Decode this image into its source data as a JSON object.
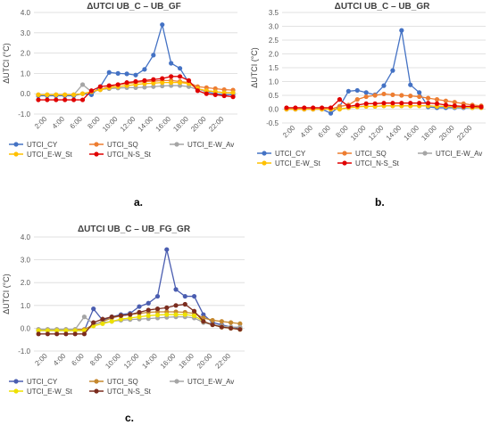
{
  "captions": [
    "a.",
    "b.",
    "c."
  ],
  "colors": {
    "UTCI_CY": "#4472C4",
    "UTCI_SQ": "#ED7D31",
    "UTCI_E-W_Av": "#A5A5A5",
    "UTCI_E-W_St": "#FFC000",
    "UTCI_N-S_St": "#E00000",
    "UTCI_SQ_c": "#C5882E",
    "UTCI_N-S_St_c": "#7B2C1E",
    "UTCI_CY_c": "#4A5DB0",
    "UTCI_E-W_St_c": "#EDE000"
  },
  "chart_data": [
    {
      "type": "line",
      "title": "ΔUTCI UB_C – UB_GF",
      "ylabel": "ΔUTCI (°C)",
      "xlabel": "",
      "ylim": [
        -1.0,
        4.0
      ],
      "yticks": [
        "-1.0",
        "0.0",
        "1.0",
        "2.0",
        "3.0",
        "4.0"
      ],
      "categories": [
        "1:00",
        "2:00",
        "3:00",
        "4:00",
        "5:00",
        "6:00",
        "7:00",
        "8:00",
        "9:00",
        "10:00",
        "11:00",
        "12:00",
        "13:00",
        "14:00",
        "15:00",
        "16:00",
        "17:00",
        "18:00",
        "19:00",
        "20:00",
        "21:00",
        "22:00",
        "23:00"
      ],
      "xtick_labels": [
        "2:00",
        "4:00",
        "6:00",
        "8:00",
        "10:00",
        "12:00",
        "14:00",
        "16:00",
        "18:00",
        "20:00",
        "22:00"
      ],
      "grid": true,
      "legend": "bottom",
      "series": [
        {
          "name": "UTCI_CY",
          "values": [
            -0.1,
            -0.1,
            -0.1,
            -0.1,
            -0.1,
            0.0,
            -0.05,
            0.35,
            1.05,
            1.0,
            0.98,
            0.92,
            1.2,
            1.9,
            3.4,
            1.5,
            1.25,
            0.55,
            0.25,
            0.1,
            0.0,
            -0.05,
            -0.05
          ]
        },
        {
          "name": "UTCI_SQ",
          "values": [
            -0.05,
            -0.05,
            -0.05,
            -0.05,
            -0.05,
            0.0,
            0.1,
            0.2,
            0.35,
            0.45,
            0.5,
            0.55,
            0.6,
            0.62,
            0.65,
            0.65,
            0.6,
            0.55,
            0.35,
            0.3,
            0.25,
            0.2,
            0.18
          ]
        },
        {
          "name": "UTCI_E-W_Av",
          "values": [
            -0.05,
            -0.05,
            -0.05,
            -0.05,
            -0.05,
            0.45,
            0.1,
            0.2,
            0.25,
            0.28,
            0.3,
            0.3,
            0.32,
            0.35,
            0.38,
            0.4,
            0.4,
            0.35,
            0.2,
            0.15,
            0.1,
            0.05,
            0.05
          ]
        },
        {
          "name": "UTCI_E-W_St",
          "values": [
            -0.05,
            -0.05,
            -0.05,
            -0.05,
            -0.05,
            0.0,
            0.1,
            0.2,
            0.3,
            0.35,
            0.4,
            0.45,
            0.5,
            0.52,
            0.55,
            0.55,
            0.55,
            0.5,
            0.25,
            0.15,
            0.1,
            0.05,
            0.05
          ]
        },
        {
          "name": "UTCI_N-S_St",
          "values": [
            -0.3,
            -0.3,
            -0.3,
            -0.3,
            -0.3,
            -0.3,
            0.15,
            0.35,
            0.4,
            0.45,
            0.55,
            0.6,
            0.65,
            0.7,
            0.75,
            0.85,
            0.85,
            0.65,
            0.15,
            0.0,
            -0.05,
            -0.1,
            -0.15
          ]
        }
      ]
    },
    {
      "type": "line",
      "title": "ΔUTCI UB_C – UB_GR",
      "ylabel": "ΔUTCI (°C)",
      "xlabel": "",
      "ylim": [
        -0.5,
        3.5
      ],
      "yticks": [
        "-0.5",
        "0.0",
        "0.5",
        "1.0",
        "1.5",
        "2.0",
        "2.5",
        "3.0",
        "3.5"
      ],
      "categories": [
        "1:00",
        "2:00",
        "3:00",
        "4:00",
        "5:00",
        "6:00",
        "7:00",
        "8:00",
        "9:00",
        "10:00",
        "11:00",
        "12:00",
        "13:00",
        "14:00",
        "15:00",
        "16:00",
        "17:00",
        "18:00",
        "19:00",
        "20:00",
        "21:00",
        "22:00",
        "23:00"
      ],
      "xtick_labels": [
        "2:00",
        "4:00",
        "6:00",
        "8:00",
        "10:00",
        "12:00",
        "14:00",
        "16:00",
        "18:00",
        "20:00",
        "22:00"
      ],
      "grid": true,
      "legend": "bottom",
      "series": [
        {
          "name": "UTCI_CY",
          "values": [
            0.0,
            0.0,
            0.0,
            0.0,
            0.0,
            -0.15,
            0.1,
            0.65,
            0.68,
            0.6,
            0.52,
            0.85,
            1.4,
            2.85,
            0.88,
            0.6,
            0.08,
            0.05,
            0.05,
            0.05,
            0.05,
            0.05,
            0.05
          ]
        },
        {
          "name": "UTCI_SQ",
          "values": [
            0.0,
            0.0,
            0.0,
            0.0,
            0.0,
            0.0,
            0.1,
            0.15,
            0.35,
            0.45,
            0.5,
            0.55,
            0.52,
            0.5,
            0.48,
            0.45,
            0.4,
            0.35,
            0.3,
            0.25,
            0.2,
            0.15,
            0.12
          ]
        },
        {
          "name": "UTCI_E-W_Av",
          "values": [
            0.0,
            0.0,
            0.0,
            0.0,
            0.0,
            0.0,
            0.0,
            0.05,
            0.1,
            0.1,
            0.1,
            0.12,
            0.12,
            0.12,
            0.12,
            0.12,
            0.12,
            0.1,
            0.1,
            0.08,
            0.08,
            0.05,
            0.05
          ]
        },
        {
          "name": "UTCI_E-W_St",
          "values": [
            0.0,
            0.0,
            0.0,
            0.0,
            0.0,
            0.0,
            0.0,
            0.05,
            0.08,
            0.1,
            0.1,
            0.12,
            0.12,
            0.12,
            0.12,
            0.12,
            0.12,
            0.1,
            0.1,
            0.08,
            0.08,
            0.05,
            0.05
          ]
        },
        {
          "name": "UTCI_N-S_St",
          "values": [
            0.05,
            0.05,
            0.05,
            0.05,
            0.05,
            0.05,
            0.35,
            0.1,
            0.15,
            0.2,
            0.2,
            0.22,
            0.22,
            0.22,
            0.22,
            0.22,
            0.22,
            0.2,
            0.15,
            0.12,
            0.1,
            0.1,
            0.08
          ]
        }
      ]
    },
    {
      "type": "line",
      "title": "ΔUTCI UB_C – UB_FG_GR",
      "ylabel": "ΔUTCI (°C)",
      "xlabel": "",
      "ylim": [
        -1.0,
        4.0
      ],
      "yticks": [
        "-1.0",
        "0.0",
        "1.0",
        "2.0",
        "3.0",
        "4.0"
      ],
      "categories": [
        "1:00",
        "2:00",
        "3:00",
        "4:00",
        "5:00",
        "6:00",
        "7:00",
        "8:00",
        "9:00",
        "10:00",
        "11:00",
        "12:00",
        "13:00",
        "14:00",
        "15:00",
        "16:00",
        "17:00",
        "18:00",
        "19:00",
        "20:00",
        "21:00",
        "22:00",
        "23:00"
      ],
      "xtick_labels": [
        "2:00",
        "4:00",
        "6:00",
        "8:00",
        "10:00",
        "12:00",
        "14:00",
        "16:00",
        "18:00",
        "20:00",
        "22:00"
      ],
      "grid": true,
      "legend": "bottom",
      "series": [
        {
          "name": "UTCI_CY",
          "values": [
            -0.1,
            -0.1,
            -0.1,
            -0.1,
            -0.1,
            -0.1,
            0.85,
            0.35,
            0.5,
            0.6,
            0.65,
            0.95,
            1.1,
            1.4,
            3.45,
            1.7,
            1.4,
            1.4,
            0.6,
            0.25,
            0.15,
            0.05,
            0.0
          ]
        },
        {
          "name": "UTCI_SQ",
          "values": [
            -0.05,
            -0.05,
            -0.05,
            -0.05,
            -0.05,
            -0.05,
            0.15,
            0.3,
            0.45,
            0.55,
            0.6,
            0.65,
            0.7,
            0.72,
            0.72,
            0.72,
            0.7,
            0.65,
            0.45,
            0.35,
            0.3,
            0.25,
            0.2
          ]
        },
        {
          "name": "UTCI_E-W_Av",
          "values": [
            -0.05,
            -0.05,
            -0.05,
            -0.05,
            -0.05,
            0.5,
            0.2,
            0.25,
            0.3,
            0.35,
            0.38,
            0.4,
            0.42,
            0.45,
            0.48,
            0.5,
            0.5,
            0.45,
            0.25,
            0.15,
            0.1,
            0.05,
            0.05
          ]
        },
        {
          "name": "UTCI_E-W_St",
          "values": [
            -0.1,
            -0.1,
            -0.1,
            -0.1,
            -0.1,
            -0.1,
            0.1,
            0.2,
            0.3,
            0.4,
            0.45,
            0.5,
            0.55,
            0.58,
            0.6,
            0.6,
            0.6,
            0.55,
            0.3,
            0.15,
            0.05,
            0.0,
            -0.05
          ]
        },
        {
          "name": "UTCI_N-S_St",
          "values": [
            -0.25,
            -0.25,
            -0.25,
            -0.25,
            -0.25,
            -0.25,
            0.25,
            0.4,
            0.5,
            0.55,
            0.6,
            0.7,
            0.8,
            0.85,
            0.9,
            1.0,
            1.05,
            0.75,
            0.3,
            0.15,
            0.05,
            0.0,
            -0.05
          ]
        }
      ]
    }
  ]
}
